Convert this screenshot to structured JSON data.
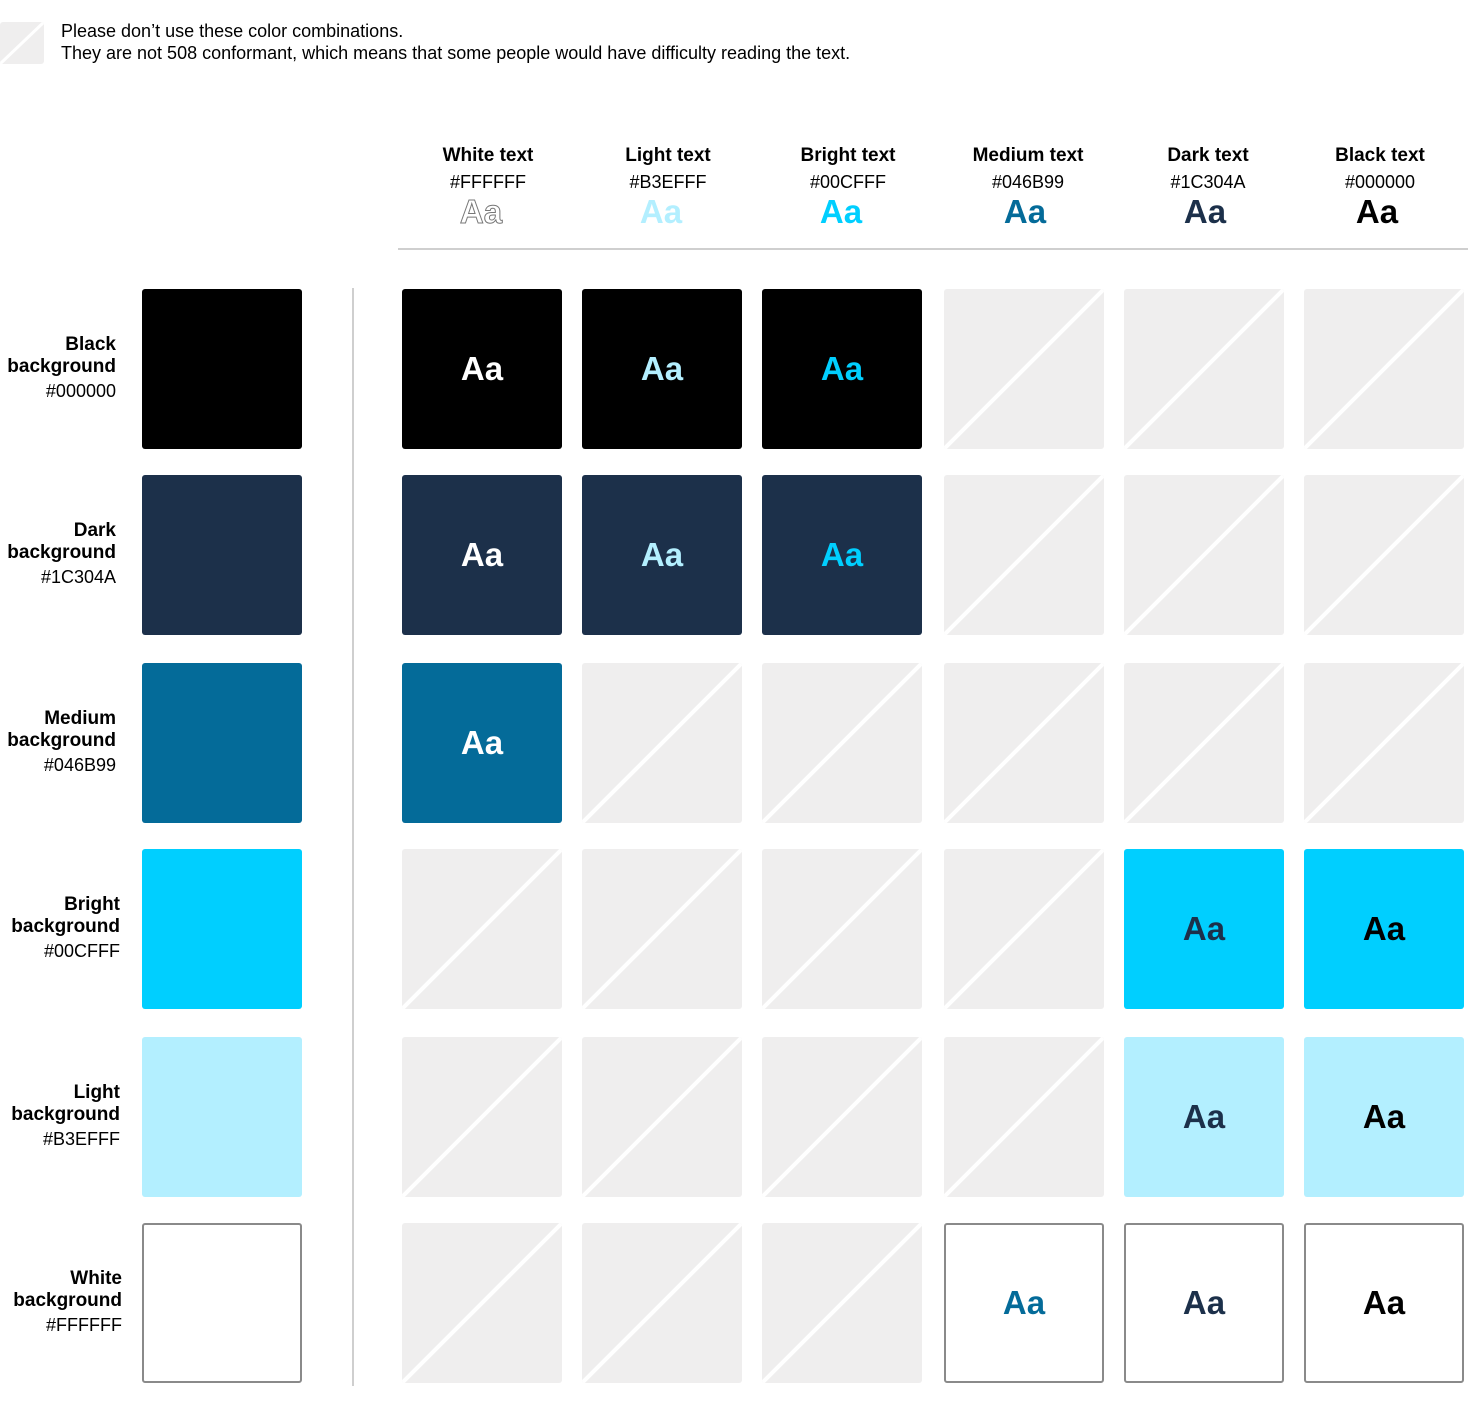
{
  "legend": {
    "line1": "Please don’t use these color combinations.",
    "line2": "They are not 508 conformant, which means that some people would have difficulty reading the text."
  },
  "sample_text": "Aa",
  "text_colors": [
    {
      "name": "White text",
      "hex": "#FFFFFF",
      "color": "#FFFFFF"
    },
    {
      "name": "Light text",
      "hex": "#B3EFFF",
      "color": "#B3EFFF"
    },
    {
      "name": "Bright text",
      "hex": "#00CFFF",
      "color": "#00CFFF"
    },
    {
      "name": "Medium text",
      "hex": "#046B99",
      "color": "#046B99"
    },
    {
      "name": "Dark text",
      "hex": "#1C304A",
      "color": "#1C304A"
    },
    {
      "name": "Black text",
      "hex": "#000000",
      "color": "#000000"
    }
  ],
  "backgrounds": [
    {
      "name_line1": "Black",
      "name_line2": "background",
      "hex": "#000000",
      "color": "#000000",
      "allowed": [
        true,
        true,
        true,
        false,
        false,
        false
      ]
    },
    {
      "name_line1": "Dark",
      "name_line2": "background",
      "hex": "#1C304A",
      "color": "#1C304A",
      "allowed": [
        true,
        true,
        true,
        false,
        false,
        false
      ]
    },
    {
      "name_line1": "Medium",
      "name_line2": "background",
      "hex": "#046B99",
      "color": "#046B99",
      "allowed": [
        true,
        false,
        false,
        false,
        false,
        false
      ]
    },
    {
      "name_line1": "Bright",
      "name_line2": "background",
      "hex": "#00CFFF",
      "color": "#00CFFF",
      "allowed": [
        false,
        false,
        false,
        false,
        true,
        true
      ]
    },
    {
      "name_line1": "Light",
      "name_line2": "background",
      "hex": "#B3EFFF",
      "color": "#B3EFFF",
      "allowed": [
        false,
        false,
        false,
        false,
        true,
        true
      ]
    },
    {
      "name_line1": "White",
      "name_line2": "background",
      "hex": "#FFFFFF",
      "color": "#FFFFFF",
      "allowed": [
        false,
        false,
        false,
        true,
        true,
        true
      ]
    }
  ],
  "colors": {
    "blocked": "#EFEEEE",
    "rule": "#CFCFCF"
  }
}
